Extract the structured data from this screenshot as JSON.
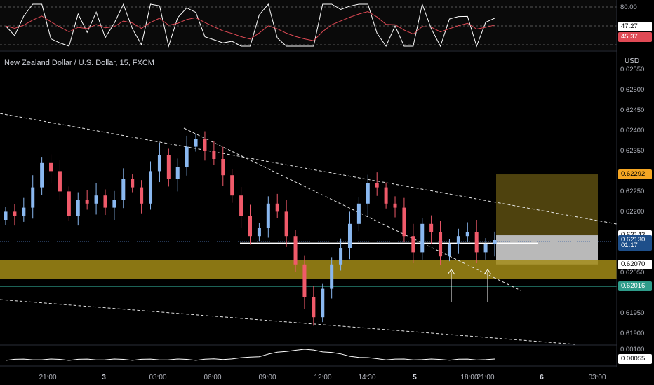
{
  "header": {
    "symbol_title": "New Zealand Dollar / U.S. Dollar, 15, FXCM",
    "currency": "USD"
  },
  "colors": {
    "up_candle": "#8ab8f0",
    "down_candle": "#f05a6a",
    "zone_fill": "#a28b16",
    "position_target": "#5c4d10",
    "position_stop": "#d9d9d9",
    "support_green": "#2e9c8a",
    "rsi_line": "#ffffff",
    "rsi_ma": "#e04a55"
  },
  "price_axis": {
    "labels": [
      "0.62550",
      "0.62500",
      "0.62450",
      "0.62400",
      "0.62350",
      "0.62250",
      "0.62200",
      "0.62050",
      "0.61950",
      "0.61900"
    ],
    "tags": [
      {
        "text": "0.62292",
        "bg": "#f5a623",
        "fg": "#000000",
        "value": 0.62292
      },
      {
        "text": "0.62142",
        "bg": "#ffffff",
        "fg": "#000000",
        "value": 0.62142
      },
      {
        "text": "0.62130",
        "bg": "#1e4f8a",
        "fg": "#ffffff",
        "value": 0.6213
      },
      {
        "text": "01:17",
        "bg": "#1e4f8a",
        "fg": "#ffffff",
        "value": 0.62117
      },
      {
        "text": "0.62070",
        "bg": "#ffffff",
        "fg": "#000000",
        "value": 0.6207
      },
      {
        "text": "0.62016",
        "bg": "#2e9c8a",
        "fg": "#ffffff",
        "value": 0.62016
      }
    ]
  },
  "rsi_axis": {
    "top_label": "80.00",
    "tags": [
      {
        "text": "47.27",
        "bg": "#ffffff",
        "fg": "#000000"
      },
      {
        "text": "45.37",
        "bg": "#e04a55",
        "fg": "#ffffff"
      }
    ]
  },
  "bottom_axis": {
    "labels": [
      "0.00100",
      "0.00055"
    ]
  },
  "time_axis": {
    "labels": [
      "21:00",
      "3",
      "03:00",
      "06:00",
      "09:00",
      "12:00",
      "14:30",
      "5",
      "18:00",
      "21:00",
      "6",
      "03:00"
    ]
  },
  "chart_data": {
    "type": "candlestick",
    "symbol": "NZD/USD",
    "interval": "15",
    "ylim": [
      0.6188,
      0.6258
    ],
    "closes": [
      0.622,
      0.6219,
      0.6221,
      0.6226,
      0.6232,
      0.623,
      0.6225,
      0.6219,
      0.6223,
      0.6222,
      0.6224,
      0.6221,
      0.6223,
      0.6228,
      0.6226,
      0.6222,
      0.623,
      0.6234,
      0.6228,
      0.6231,
      0.6236,
      0.6238,
      0.6235,
      0.6233,
      0.6229,
      0.6224,
      0.6219,
      0.6214,
      0.6216,
      0.6222,
      0.622,
      0.6214,
      0.6207,
      0.6199,
      0.6194,
      0.6201,
      0.6207,
      0.6211,
      0.6217,
      0.6222,
      0.6227,
      0.6226,
      0.6222,
      0.6221,
      0.6214,
      0.621,
      0.6217,
      0.6215,
      0.6209,
      0.6212,
      0.6214,
      0.6215,
      0.621,
      0.6212,
      0.6213
    ],
    "support_zone": [
      0.62035,
      0.6208
    ],
    "horizontal_level": 0.62122,
    "support_line": 0.62016,
    "long_position": {
      "entry": 0.62142,
      "target": 0.62292,
      "stop": 0.6207
    }
  }
}
